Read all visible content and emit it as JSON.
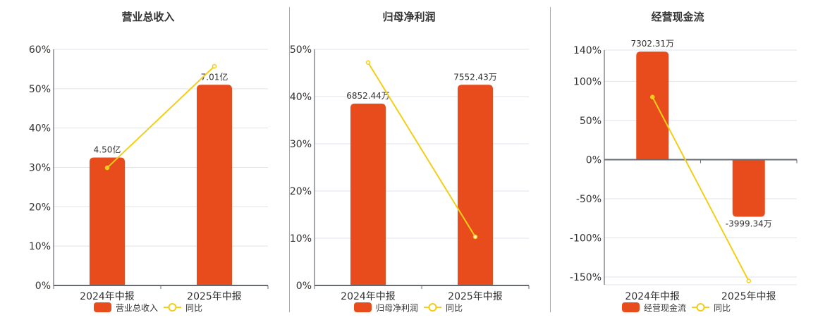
{
  "colors": {
    "bar": "#E84C1C",
    "line": "#F2CE1A",
    "grid": "#DDE3EE",
    "axis": "#666A73"
  },
  "legend": {
    "yoy_label": "同比"
  },
  "chart_data": [
    {
      "type": "bar",
      "title": "营业总收入",
      "categories": [
        "2024年中报",
        "2025年中报"
      ],
      "series": [
        {
          "name": "营业总收入",
          "kind": "bar",
          "values": [
            4.5,
            7.01
          ],
          "unit": "亿",
          "labels": [
            "4.50亿",
            "7.01亿"
          ]
        },
        {
          "name": "同比",
          "kind": "line",
          "values": [
            29.9,
            55.7
          ],
          "unit": "%"
        }
      ],
      "yaxis": {
        "ticks": [
          "0%",
          "10%",
          "20%",
          "30%",
          "40%",
          "50%",
          "60%"
        ],
        "tick_values": [
          0,
          10,
          20,
          30,
          40,
          50,
          60
        ],
        "ylim": [
          0,
          60
        ]
      },
      "bar_pct_heights": [
        32.5,
        51.0
      ],
      "grid": true,
      "legend_position": "bottom"
    },
    {
      "type": "bar",
      "title": "归母净利润",
      "categories": [
        "2024年中报",
        "2025年中报"
      ],
      "series": [
        {
          "name": "归母净利润",
          "kind": "bar",
          "values": [
            6852.44,
            7552.43
          ],
          "unit": "万",
          "labels": [
            "6852.44万",
            "7552.43万"
          ]
        },
        {
          "name": "同比",
          "kind": "line",
          "values": [
            47.2,
            10.3
          ],
          "unit": "%"
        }
      ],
      "yaxis": {
        "ticks": [
          "0%",
          "10%",
          "20%",
          "30%",
          "40%",
          "50%"
        ],
        "tick_values": [
          0,
          10,
          20,
          30,
          40,
          50
        ],
        "ylim": [
          0,
          50
        ]
      },
      "bar_pct_heights": [
        38.5,
        42.5
      ],
      "grid": true,
      "legend_position": "bottom"
    },
    {
      "type": "bar",
      "title": "经营现金流",
      "categories": [
        "2024年中报",
        "2025年中报"
      ],
      "series": [
        {
          "name": "经营现金流",
          "kind": "bar",
          "values": [
            7302.31,
            -3999.34
          ],
          "unit": "万",
          "labels": [
            "7302.31万",
            "-3999.34万"
          ]
        },
        {
          "name": "同比",
          "kind": "line",
          "values": [
            80.0,
            -155.0
          ],
          "unit": "%"
        }
      ],
      "yaxis": {
        "ticks": [
          "-150%",
          "-100%",
          "-50%",
          "0%",
          "50%",
          "100%",
          "140%"
        ],
        "tick_values": [
          -150,
          -100,
          -50,
          0,
          50,
          100,
          140
        ],
        "ylim": [
          -160,
          140
        ]
      },
      "bar_pct_heights": [
        138,
        -73
      ],
      "grid": true,
      "legend_position": "bottom"
    }
  ]
}
